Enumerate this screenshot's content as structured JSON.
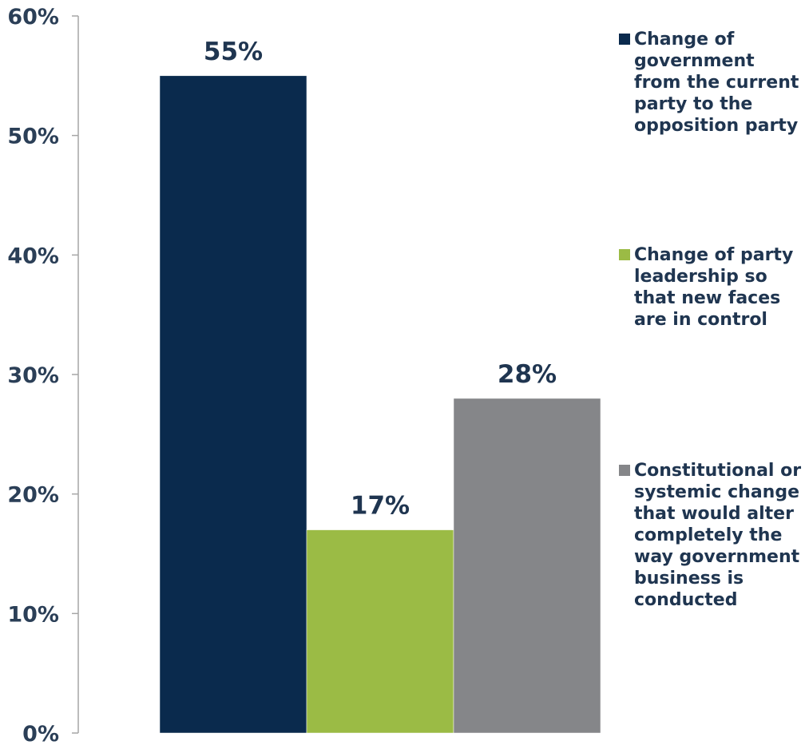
{
  "chart_data": {
    "type": "bar",
    "title": "",
    "xlabel": "",
    "ylabel": "",
    "ylim": [
      0,
      60
    ],
    "yticks": [
      "0%",
      "10%",
      "20%",
      "30%",
      "40%",
      "50%",
      "60%"
    ],
    "ytick_values": [
      0,
      10,
      20,
      30,
      40,
      50,
      60
    ],
    "grid": false,
    "legend_position": "right",
    "series": [
      {
        "name": "Change of government from the current party to the opposition party",
        "value": 55,
        "label": "55%",
        "color": "#0a2a4d"
      },
      {
        "name": "Change of party leadership so that new faces are in control",
        "value": 17,
        "label": "17%",
        "color": "#9bbb45"
      },
      {
        "name": "Constitutional or systemic change that would alter completely the way government business is conducted",
        "value": 28,
        "label": "28%",
        "color": "#858689"
      }
    ]
  }
}
